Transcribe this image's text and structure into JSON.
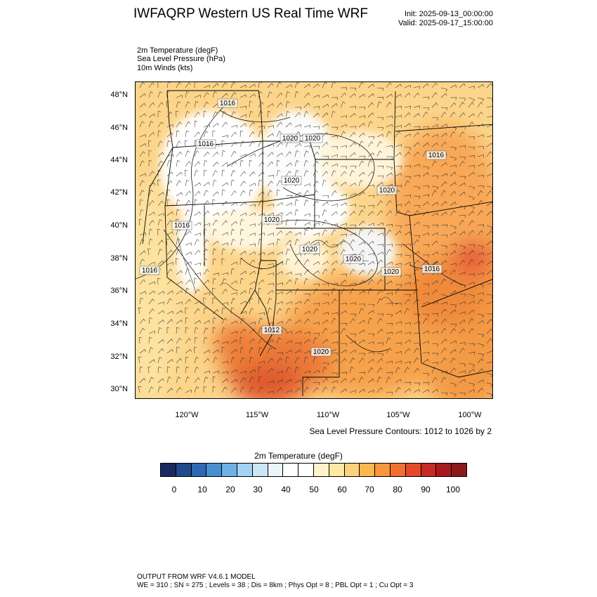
{
  "header": {
    "title": "IWFAQRP Western US Real Time WRF",
    "init": "Init: 2025-09-13_00:00:00",
    "valid": "Valid: 2025-09-17_15:00:00"
  },
  "variables": [
    "2m Temperature   (degF)",
    "Sea Level Pressure   (hPa)",
    "10m Winds   (kts)"
  ],
  "map": {
    "lat_labels": [
      "48°N",
      "46°N",
      "44°N",
      "42°N",
      "40°N",
      "38°N",
      "36°N",
      "34°N",
      "32°N",
      "30°N"
    ],
    "lon_labels": [
      "120°W",
      "115°W",
      "110°W",
      "105°W",
      "100°W"
    ],
    "isobar_labels": [
      "1016",
      "1016",
      "1020",
      "1020",
      "1016",
      "1020",
      "1020",
      "1020",
      "1016",
      "1020",
      "1020",
      "1020",
      "1016",
      "1016",
      "1012",
      "1020"
    ],
    "contour_note": "Sea Level Pressure Contours: 1012 to 1026 by 2"
  },
  "colorbar": {
    "title": "2m Temperature  (degF)",
    "colors": [
      "#1a2a5e",
      "#1f4a8c",
      "#2e6ab3",
      "#4a90d0",
      "#6fb1e6",
      "#a3d3f2",
      "#cbe6f7",
      "#eaf4fb",
      "#ffffff",
      "#ffffff",
      "#fff3cc",
      "#fde8a6",
      "#fdd27d",
      "#fbb84f",
      "#f8963a",
      "#f0712f",
      "#e34a2a",
      "#c92a25",
      "#a81a20",
      "#8a1a1c"
    ],
    "ticks": [
      "0",
      "10",
      "20",
      "30",
      "40",
      "50",
      "60",
      "70",
      "80",
      "90",
      "100"
    ]
  },
  "footer": {
    "line1": "OUTPUT FROM WRF V4.6.1 MODEL",
    "line2": "WE = 310 ; SN = 275 ; Levels = 38 ; Dis = 8km ; Phys Opt = 8 ; PBL Opt = 1 ; Cu Opt = 3"
  }
}
